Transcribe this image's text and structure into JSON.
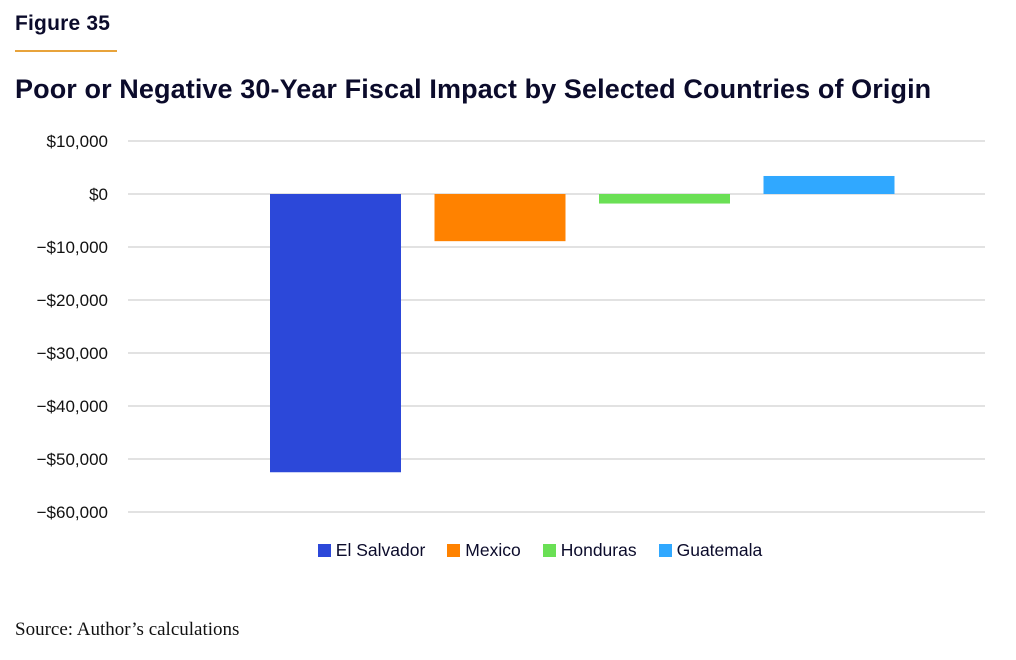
{
  "figure_label": "Figure 35",
  "source": "Source: Author’s calculations",
  "chart_data": {
    "type": "bar",
    "title": "Poor or Negative 30-Year Fiscal Impact by Selected Countries of Origin",
    "xlabel": "",
    "ylabel": "",
    "categories": [
      "El Salvador",
      "Mexico",
      "Honduras",
      "Guatemala"
    ],
    "values": [
      -52500,
      -8900,
      -1800,
      3400
    ],
    "colors": [
      "#2c48d9",
      "#ff8200",
      "#6ae055",
      "#30a8ff"
    ],
    "ylim": [
      -60000,
      10000
    ],
    "yticks": [
      10000,
      0,
      -10000,
      -20000,
      -30000,
      -40000,
      -50000,
      -60000
    ],
    "ytick_labels": [
      "$10,000",
      "$0",
      "−$10,000",
      "−$20,000",
      "−$30,000",
      "−$40,000",
      "−$50,000",
      "−$60,000"
    ],
    "grid": true,
    "grid_color": "#d9d9d9",
    "legend": {
      "placement": "bottom-center",
      "entries": [
        "El Salvador",
        "Mexico",
        "Honduras",
        "Guatemala"
      ]
    }
  }
}
